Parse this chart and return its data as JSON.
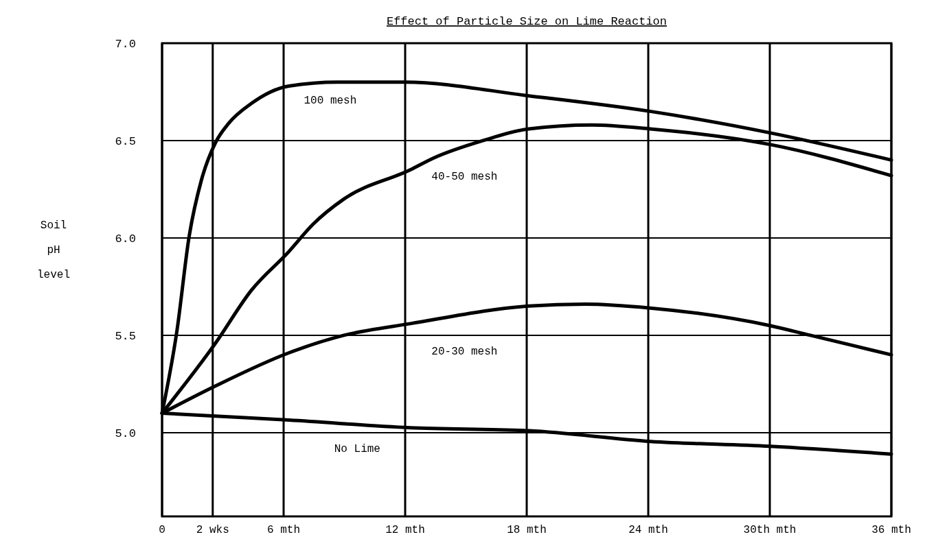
{
  "chart_data": {
    "type": "line",
    "title": "Effect of Particle Size on Lime Reaction",
    "ylabel": "Soil pH level",
    "xlim": [
      0,
      36
    ],
    "xticks": [
      0,
      {
        "value": 2.5,
        "label": "2 wks"
      },
      {
        "value": 6,
        "label": "6 mth"
      },
      {
        "value": 12,
        "label": "12 mth"
      },
      {
        "value": 18,
        "label": "18 mth"
      },
      {
        "value": 24,
        "label": "24 mth"
      },
      {
        "value": 30,
        "label": "30th mth"
      },
      {
        "value": 36,
        "label": "36 mth"
      }
    ],
    "ylim": [
      4.57,
      7.0
    ],
    "yticks": [
      {
        "value": 5,
        "label": "5.0"
      },
      {
        "value": 5.5,
        "label": "5.5"
      },
      {
        "value": 6,
        "label": "6.0"
      },
      {
        "value": 6.5,
        "label": "6.5"
      },
      {
        "value": 7,
        "label": "7.0"
      }
    ],
    "grid": true,
    "marker": "none",
    "line_style": "solid",
    "series": [
      {
        "name": "100 mesh",
        "color": "#000000",
        "x": [
          0,
          0.73,
          1.34,
          1.95,
          2.64,
          3.3,
          4.4,
          6.26,
          8.67,
          12,
          18.1,
          24.1,
          30,
          36
        ],
        "values": [
          5.1,
          5.52,
          6.01,
          6.3,
          6.49,
          6.59,
          6.69,
          6.78,
          6.8,
          6.8,
          6.73,
          6.65,
          6.54,
          6.4
        ]
      },
      {
        "name": "40-50 mesh",
        "color": "#000000",
        "x": [
          0,
          2.64,
          4.4,
          6.26,
          7.45,
          8.98,
          12.26,
          13.4,
          15.85,
          18.1,
          21.2,
          24.1,
          30,
          36
        ],
        "values": [
          5.1,
          5.46,
          5.73,
          5.93,
          6.07,
          6.2,
          6.35,
          6.41,
          6.5,
          6.56,
          6.58,
          6.56,
          6.48,
          6.32
        ]
      },
      {
        "name": "20-30 mesh",
        "color": "#000000",
        "x": [
          0,
          2.64,
          6.26,
          8.98,
          12.26,
          18.1,
          20.9,
          24.1,
          30,
          32,
          36
        ],
        "values": [
          5.1,
          5.24,
          5.41,
          5.5,
          5.56,
          5.65,
          5.66,
          5.64,
          5.55,
          5.5,
          5.4
        ]
      },
      {
        "name": "No Lime",
        "color": "#000000",
        "x": [
          0,
          2.64,
          6.26,
          12.26,
          18.1,
          24.1,
          30,
          36
        ],
        "values": [
          5.1,
          5.085,
          5.065,
          5.025,
          5.01,
          4.955,
          4.93,
          4.89
        ]
      }
    ]
  }
}
